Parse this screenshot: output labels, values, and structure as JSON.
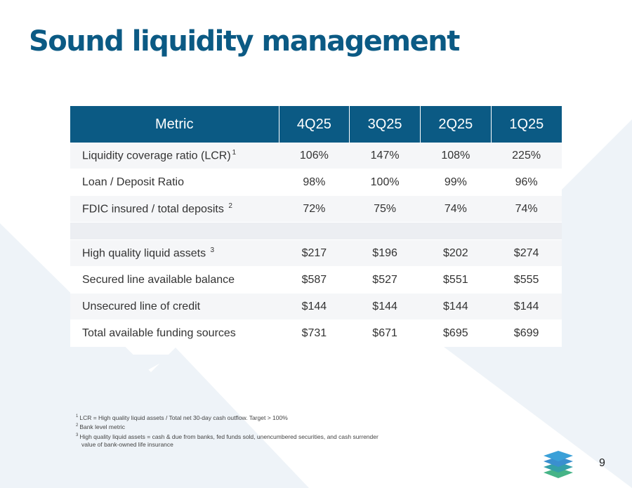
{
  "title": "Sound liquidity management",
  "table": {
    "headers": [
      "Metric",
      "4Q25",
      "3Q25",
      "2Q25",
      "1Q25"
    ],
    "rows": [
      {
        "label": "Liquidity coverage ratio (LCR)",
        "note": "1",
        "values": [
          "106%",
          "147%",
          "108%",
          "225%"
        ]
      },
      {
        "label": "Loan / Deposit Ratio",
        "note": "",
        "values": [
          "98%",
          "100%",
          "99%",
          "96%"
        ]
      },
      {
        "label": "FDIC insured / total deposits",
        "note": "2",
        "values": [
          "72%",
          "75%",
          "74%",
          "74%"
        ]
      },
      {
        "label": "High quality liquid assets",
        "note": "3",
        "values": [
          "$217",
          "$196",
          "$202",
          "$274"
        ]
      },
      {
        "label": "Secured line available balance",
        "note": "",
        "values": [
          "$587",
          "$527",
          "$551",
          "$555"
        ]
      },
      {
        "label": "Unsecured line of credit",
        "note": "",
        "values": [
          "$144",
          "$144",
          "$144",
          "$144"
        ]
      },
      {
        "label": "Total available funding sources",
        "note": "",
        "values": [
          "$731",
          "$671",
          "$695",
          "$699"
        ]
      }
    ]
  },
  "footnotes": [
    {
      "mark": "1",
      "text": "LCR = High quality liquid assets / Total net 30-day cash outflow.  Target > 100%"
    },
    {
      "mark": "2",
      "text": "Bank level metric"
    },
    {
      "mark": "3",
      "text": "High quality liquid assets = cash & due from banks, fed funds sold, unencumbered securities, and cash surrender"
    },
    {
      "mark": "",
      "text": "value of bank-owned life insurance"
    }
  ],
  "page_number": "9",
  "colors": {
    "brand_blue": "#0b5a84",
    "row_light": "#f5f6f8",
    "background_shape": "#eef3f8",
    "logo_blue": "#3aa0d8",
    "logo_green": "#46b487"
  },
  "logo_icon": "stacked-layers-icon"
}
